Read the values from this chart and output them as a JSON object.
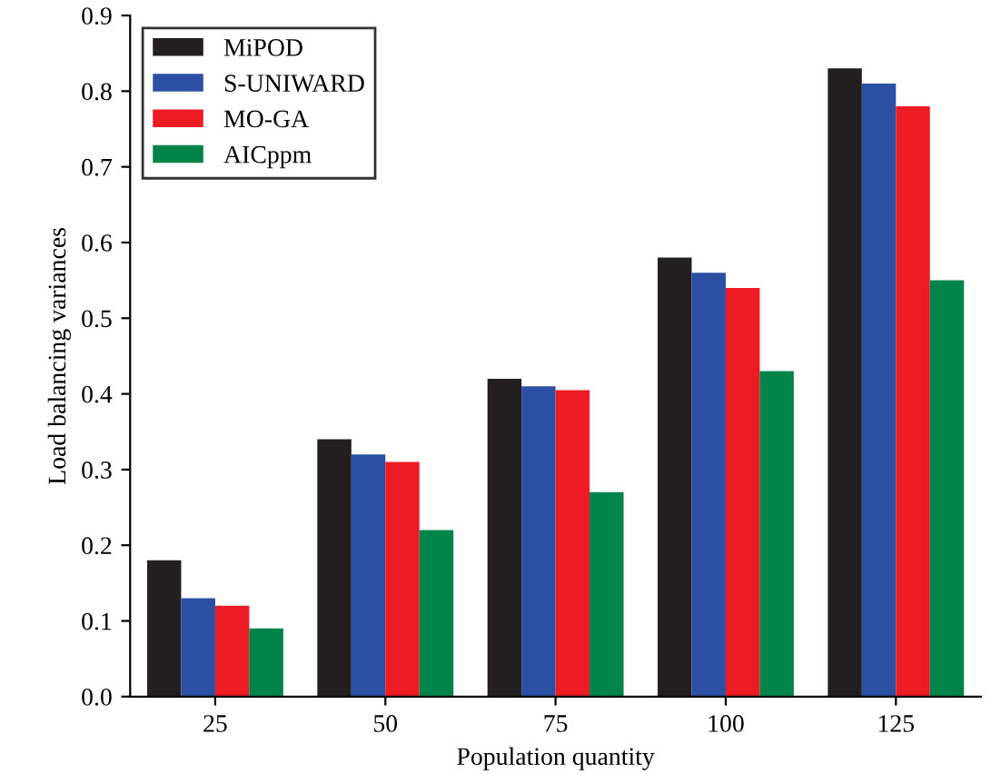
{
  "chart_data": {
    "type": "bar",
    "xlabel": "Population quantity",
    "ylabel": "Load balancing variances",
    "categories": [
      "25",
      "50",
      "75",
      "100",
      "125"
    ],
    "series": [
      {
        "name": "MiPOD",
        "color": "#231f20",
        "values": [
          0.18,
          0.34,
          0.42,
          0.58,
          0.83
        ]
      },
      {
        "name": "S-UNIWARD",
        "color": "#2b4fa3",
        "values": [
          0.13,
          0.32,
          0.41,
          0.56,
          0.81
        ]
      },
      {
        "name": "MO-GA",
        "color": "#ed1c24",
        "values": [
          0.12,
          0.31,
          0.405,
          0.54,
          0.78
        ]
      },
      {
        "name": "AICppm",
        "color": "#00844a",
        "values": [
          0.09,
          0.22,
          0.27,
          0.43,
          0.55
        ]
      }
    ],
    "ylim": [
      0,
      0.9
    ],
    "yticks": [
      {
        "value": 0,
        "label": "0.0"
      },
      0.1,
      0.2,
      0.3,
      0.4,
      0.5,
      0.6,
      0.7,
      0.8,
      0.9
    ],
    "grid": false,
    "legend": "top left"
  }
}
